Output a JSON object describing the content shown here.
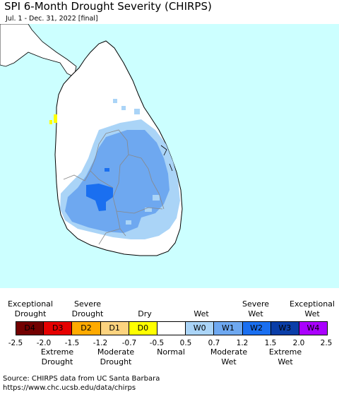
{
  "title": "SPI 6-Month Drought Severity (CHIRPS)",
  "subtitle": "Jul. 1 - Dec. 31, 2022 [final]",
  "colors": {
    "ocean": "#ccffff",
    "land": "#ffffff",
    "w0": "#aad4f7",
    "w1": "#6ea8f0",
    "w2": "#1a6ff0",
    "d0": "#ffff00"
  },
  "legend": {
    "top_labels": [
      {
        "text_1": "Exceptional",
        "text_2": "Drought"
      },
      {
        "text_1": "Severe",
        "text_2": "Drought"
      },
      {
        "text_1": "Dry",
        "text_2": ""
      },
      {
        "text_1": "Wet",
        "text_2": ""
      },
      {
        "text_1": "Severe",
        "text_2": "Wet"
      },
      {
        "text_1": "Exceptional",
        "text_2": "Wet"
      }
    ],
    "categories": [
      {
        "label": "D4",
        "color": "#730000",
        "text_color": "#000000"
      },
      {
        "label": "D3",
        "color": "#e60000",
        "text_color": "#000000"
      },
      {
        "label": "D2",
        "color": "#ffaa00",
        "text_color": "#000000"
      },
      {
        "label": "D1",
        "color": "#fcd37f",
        "text_color": "#000000"
      },
      {
        "label": "D0",
        "color": "#ffff00",
        "text_color": "#000000"
      },
      {
        "label": "",
        "color": "#ffffff",
        "text_color": "#000000"
      },
      {
        "label": "W0",
        "color": "#aad4f7",
        "text_color": "#000000"
      },
      {
        "label": "W1",
        "color": "#6ea8f0",
        "text_color": "#000000"
      },
      {
        "label": "W2",
        "color": "#1a6ff0",
        "text_color": "#000000"
      },
      {
        "label": "W3",
        "color": "#0a3ea8",
        "text_color": "#000000"
      },
      {
        "label": "W4",
        "color": "#aa00ff",
        "text_color": "#000000"
      }
    ],
    "ticks": [
      "-2.5",
      "-2.0",
      "-1.5",
      "-1.2",
      "-0.7",
      "-0.5",
      "0.5",
      "0.7",
      "1.2",
      "1.5",
      "2.0",
      "2.5"
    ],
    "bottom_labels": [
      {
        "text_1": "Extreme",
        "text_2": "Drought"
      },
      {
        "text_1": "Moderate",
        "text_2": "Drought"
      },
      {
        "text_1": "Normal",
        "text_2": ""
      },
      {
        "text_1": "Moderate",
        "text_2": "Wet"
      },
      {
        "text_1": "Extreme",
        "text_2": "Wet"
      }
    ]
  },
  "source": {
    "line_1": "Source: CHIRPS data from UC Santa Barbara",
    "line_2": "https://www.chc.ucsb.edu/data/chirps"
  }
}
